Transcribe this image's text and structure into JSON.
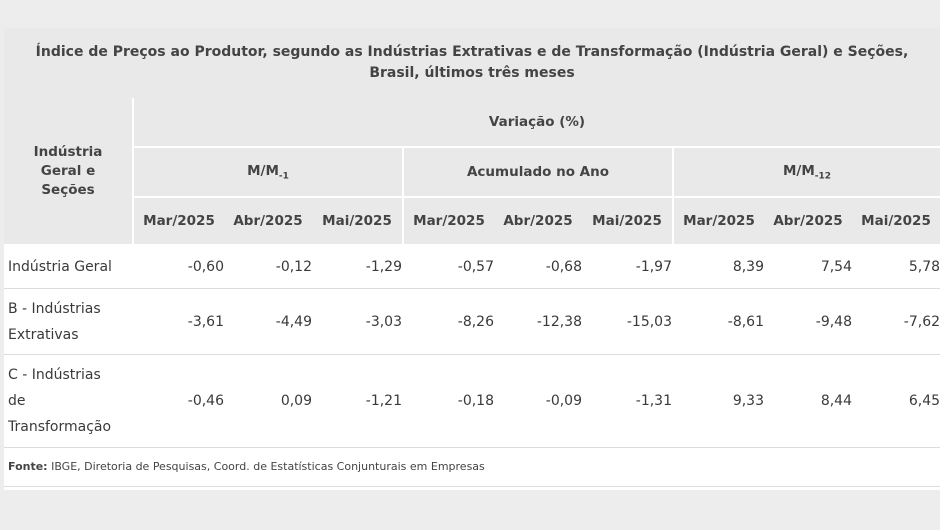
{
  "title_line1": "Índice de Preços ao Produtor, segundo as Indústrias Extrativas e de Transformação (Indústria Geral) e Seções,",
  "title_line2": "Brasil, últimos três meses",
  "header": {
    "row_label_lines": [
      "Indústria",
      "Geral e",
      "Seções"
    ],
    "variation": "Variação (%)",
    "groups": [
      {
        "main": "M/M",
        "sub": "-1"
      },
      {
        "main": "Acumulado no Ano",
        "sub": ""
      },
      {
        "main": "M/M",
        "sub": "-12"
      }
    ],
    "months": [
      "Mar/2025",
      "Abr/2025",
      "Mai/2025",
      "Mar/2025",
      "Abr/2025",
      "Mai/2025",
      "Mar/2025",
      "Abr/2025",
      "Mai/2025"
    ]
  },
  "rows": [
    {
      "label_lines": [
        "Indústria Geral"
      ],
      "values": [
        "-0,60",
        "-0,12",
        "-1,29",
        "-0,57",
        "-0,68",
        "-1,97",
        "8,39",
        "7,54",
        "5,78"
      ]
    },
    {
      "label_lines": [
        "B - Indústrias",
        "Extrativas"
      ],
      "values": [
        "-3,61",
        "-4,49",
        "-3,03",
        "-8,26",
        "-12,38",
        "-15,03",
        "-8,61",
        "-9,48",
        "-7,62"
      ]
    },
    {
      "label_lines": [
        "C - Indústrias",
        "de",
        "Transformação"
      ],
      "values": [
        "-0,46",
        "0,09",
        "-1,21",
        "-0,18",
        "-0,09",
        "-1,31",
        "9,33",
        "8,44",
        "6,45"
      ]
    }
  ],
  "source": {
    "label": "Fonte:",
    "text": " IBGE, Diretoria de Pesquisas, Coord. de Estatísticas Conjunturais em Empresas"
  }
}
